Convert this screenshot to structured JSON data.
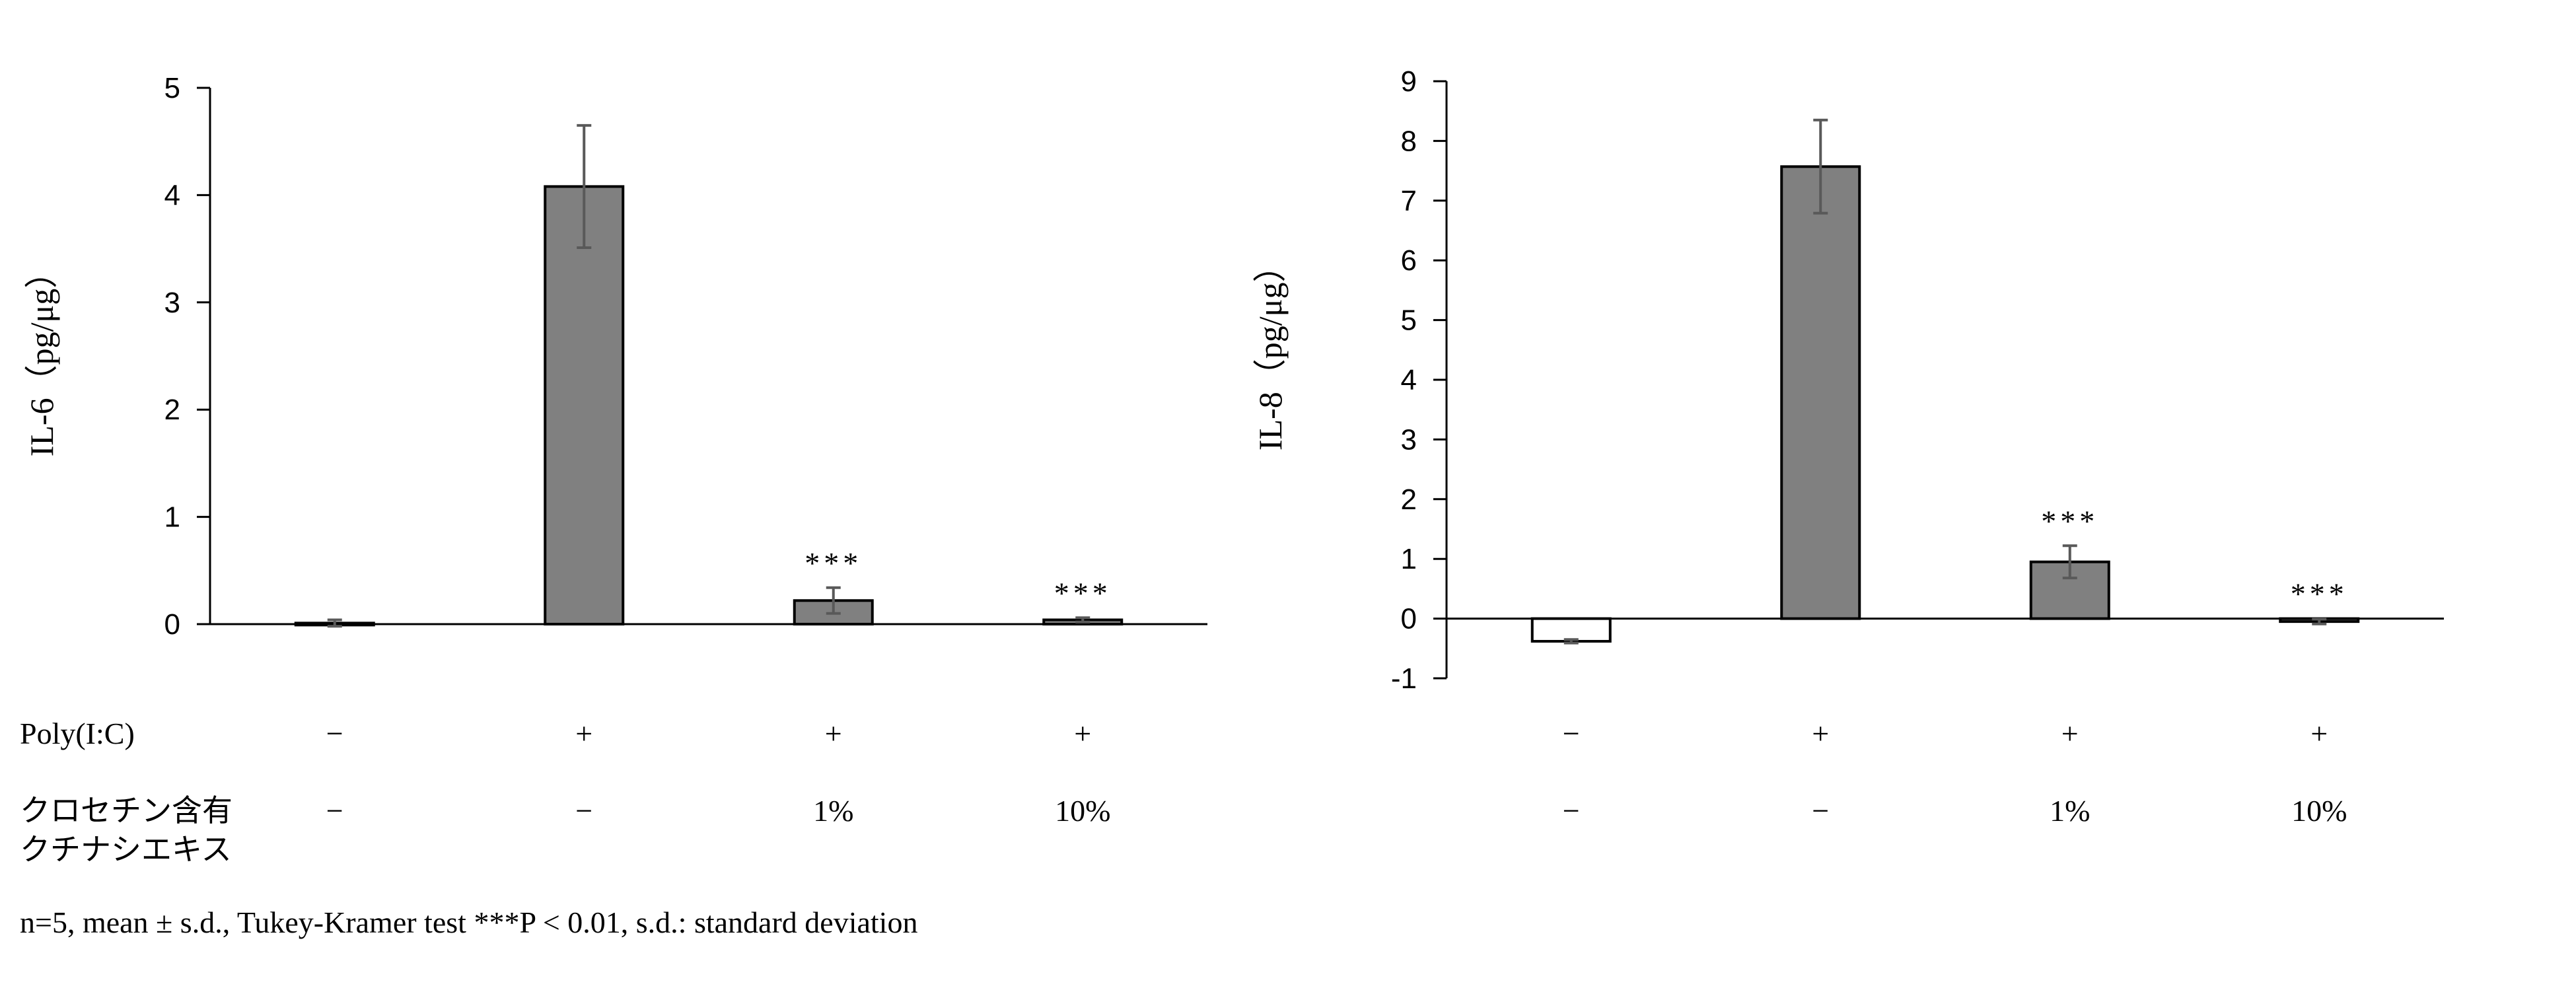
{
  "chart_data": [
    {
      "type": "bar",
      "ylabel": "IL-6（pg/μg）",
      "ylim": [
        0,
        5
      ],
      "yticks": [
        0,
        1,
        2,
        3,
        4,
        5
      ],
      "values": [
        0.01,
        4.08,
        0.22,
        0.04
      ],
      "errors": [
        0.03,
        0.57,
        0.12,
        0.02
      ],
      "significance": [
        "",
        "",
        "***",
        "***"
      ],
      "bar_colors": [
        "#808080",
        "#808080",
        "#808080",
        "#808080"
      ],
      "poly_ic": [
        "−",
        "+",
        "+",
        "+"
      ],
      "extract": [
        "−",
        "−",
        "1%",
        "10%"
      ]
    },
    {
      "type": "bar",
      "ylabel": "IL-8（pg/μg）",
      "ylim": [
        -1,
        9
      ],
      "yticks": [
        -1,
        0,
        1,
        2,
        3,
        4,
        5,
        6,
        7,
        8,
        9
      ],
      "values": [
        -0.38,
        7.57,
        0.95,
        -0.05
      ],
      "errors": [
        0.03,
        0.78,
        0.27,
        0.04
      ],
      "significance": [
        "",
        "",
        "***",
        "***"
      ],
      "bar_colors": [
        "#ffffff",
        "#808080",
        "#808080",
        "#808080"
      ],
      "poly_ic": [
        "−",
        "+",
        "+",
        "+"
      ],
      "extract": [
        "−",
        "−",
        "1%",
        "10%"
      ]
    }
  ],
  "row_labels": {
    "poly_ic": "Poly(I:C)",
    "extract_line1": "クロセチン含有",
    "extract_line2": "クチナシエキス"
  },
  "footnote": "n=5, mean ± s.d., Tukey-Kramer test ***P < 0.01, s.d.: standard deviation",
  "colors": {
    "bar": "#808080",
    "axis": "#000000",
    "errorbar": "#595959"
  }
}
